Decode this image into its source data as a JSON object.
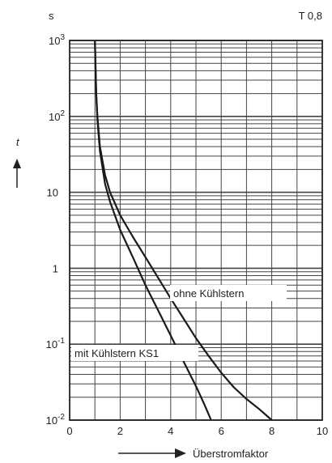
{
  "chart_data": {
    "type": "line",
    "title": "",
    "corner_label": "T 0,8",
    "y_unit": "s",
    "ylabel": "t",
    "xlabel": "Überstromfaktor",
    "xlim": [
      0,
      10
    ],
    "ylim": [
      0.01,
      1000
    ],
    "y_scale": "log",
    "grid": true,
    "x_ticks": [
      "0",
      "2",
      "4",
      "6",
      "8",
      "10"
    ],
    "y_ticks": [
      {
        "value": 1000,
        "base": "10",
        "exp": "3"
      },
      {
        "value": 100,
        "base": "10",
        "exp": "2"
      },
      {
        "value": 10,
        "base": "10",
        "exp": ""
      },
      {
        "value": 1,
        "base": "1",
        "exp": ""
      },
      {
        "value": 0.1,
        "base": "10",
        "exp": "-1"
      },
      {
        "value": 0.01,
        "base": "10",
        "exp": "-2"
      }
    ],
    "series": [
      {
        "name": "ohne Kühlstern",
        "x": [
          1.0,
          1.05,
          1.1,
          1.2,
          1.4,
          1.6,
          2.0,
          2.5,
          3.0,
          3.5,
          4.0,
          4.5,
          5.0,
          5.5,
          6.0,
          6.5,
          7.0,
          7.5,
          8.0
        ],
        "y": [
          1000,
          200,
          100,
          40,
          17,
          10,
          5,
          2.6,
          1.4,
          0.75,
          0.4,
          0.22,
          0.12,
          0.07,
          0.042,
          0.027,
          0.019,
          0.014,
          0.01
        ]
      },
      {
        "name": "mit Kühlstern KS1",
        "x": [
          1.0,
          1.05,
          1.1,
          1.2,
          1.4,
          1.6,
          2.0,
          2.5,
          3.0,
          3.5,
          4.0,
          4.5,
          5.0,
          5.3,
          5.6
        ],
        "y": [
          1000,
          200,
          90,
          35,
          13,
          7.5,
          3.2,
          1.4,
          0.6,
          0.28,
          0.13,
          0.06,
          0.028,
          0.017,
          0.01
        ]
      }
    ]
  }
}
